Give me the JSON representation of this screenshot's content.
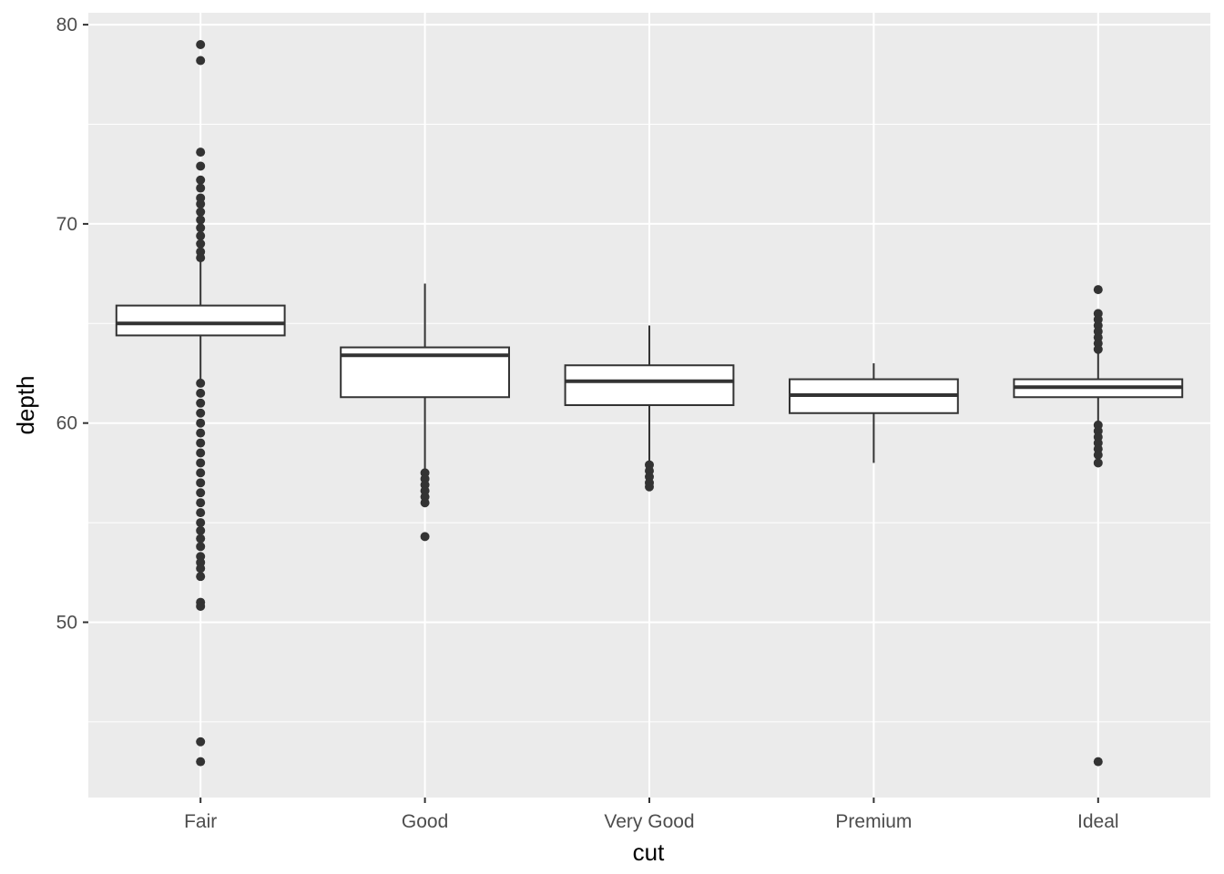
{
  "chart_data": {
    "type": "box",
    "xlabel": "cut",
    "ylabel": "depth",
    "ylim": [
      41.2,
      80.6
    ],
    "y_ticks": [
      50,
      60,
      70,
      80
    ],
    "grid": true,
    "categories": [
      "Fair",
      "Good",
      "Very Good",
      "Premium",
      "Ideal"
    ],
    "boxes": [
      {
        "category": "Fair",
        "whisker_low": 62.2,
        "q1": 64.4,
        "median": 65.0,
        "q3": 65.9,
        "whisker_high": 68.1,
        "outliers": [
          79.0,
          78.2,
          73.6,
          72.9,
          72.2,
          71.8,
          71.3,
          71.0,
          70.6,
          70.2,
          69.8,
          69.4,
          69.0,
          68.6,
          68.3,
          62.0,
          61.5,
          61.0,
          60.5,
          60.0,
          59.5,
          59.0,
          58.5,
          58.0,
          57.5,
          57.0,
          56.5,
          56.0,
          55.5,
          55.0,
          54.6,
          54.2,
          53.8,
          53.3,
          53.0,
          52.7,
          52.3,
          51.0,
          50.8,
          44.0,
          43.0
        ]
      },
      {
        "category": "Good",
        "whisker_low": 57.6,
        "q1": 61.3,
        "median": 63.4,
        "q3": 63.8,
        "whisker_high": 67.0,
        "outliers": [
          57.5,
          57.2,
          56.9,
          56.6,
          56.3,
          56.0,
          54.3
        ]
      },
      {
        "category": "Very Good",
        "whisker_low": 58.0,
        "q1": 60.9,
        "median": 62.1,
        "q3": 62.9,
        "whisker_high": 64.9,
        "outliers": [
          57.9,
          57.6,
          57.3,
          57.0,
          56.8
        ]
      },
      {
        "category": "Premium",
        "whisker_low": 58.0,
        "q1": 60.5,
        "median": 61.4,
        "q3": 62.2,
        "whisker_high": 63.0,
        "outliers": []
      },
      {
        "category": "Ideal",
        "whisker_low": 60.0,
        "q1": 61.3,
        "median": 61.8,
        "q3": 62.2,
        "whisker_high": 63.5,
        "outliers": [
          66.7,
          65.5,
          65.2,
          64.9,
          64.6,
          64.3,
          64.0,
          63.7,
          59.9,
          59.6,
          59.3,
          59.0,
          58.7,
          58.4,
          58.0,
          43.0
        ]
      }
    ]
  }
}
